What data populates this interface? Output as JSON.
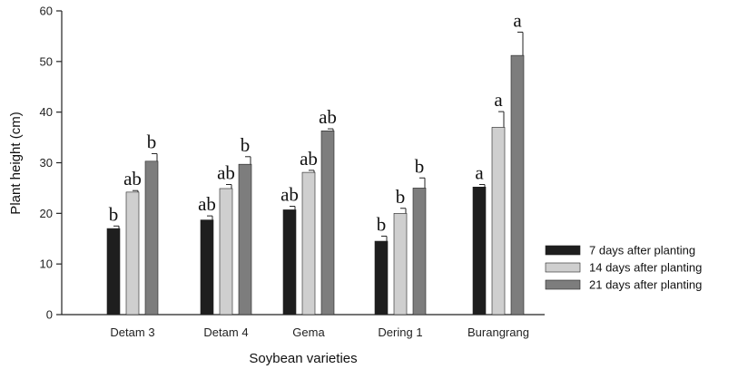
{
  "chart_data": {
    "type": "bar",
    "title": "",
    "xlabel": "Soybean varieties",
    "ylabel": "Plant height (cm)",
    "ylim": [
      0,
      60
    ],
    "yticks": [
      0,
      10,
      20,
      30,
      40,
      50,
      60
    ],
    "categories": [
      "Detam 3",
      "Detam 4",
      "Gema",
      "Dering 1",
      "Burangrang"
    ],
    "series": [
      {
        "name": "7 days after planting",
        "color": "#1e1e1e",
        "values": [
          17.0,
          18.7,
          20.7,
          14.5,
          25.2
        ],
        "errors": [
          0.5,
          0.8,
          0.7,
          1.0,
          0.5
        ],
        "labels": [
          "b",
          "ab",
          "ab",
          "b",
          "a"
        ]
      },
      {
        "name": "14 days after planting",
        "color": "#cfcfcf",
        "values": [
          24.2,
          24.9,
          28.1,
          20.0,
          37.0
        ],
        "errors": [
          0.3,
          0.8,
          0.4,
          1.0,
          3.1
        ],
        "labels": [
          "ab",
          "ab",
          "ab",
          "b",
          "a"
        ]
      },
      {
        "name": "21 days after planting",
        "color": "#7d7d7d",
        "values": [
          30.3,
          29.7,
          36.3,
          25.0,
          51.2
        ],
        "errors": [
          1.5,
          1.5,
          0.4,
          2.0,
          4.6
        ],
        "labels": [
          "b",
          "b",
          "ab",
          "b",
          "a"
        ]
      }
    ],
    "legend_position": "bottom-right",
    "grid": false
  }
}
